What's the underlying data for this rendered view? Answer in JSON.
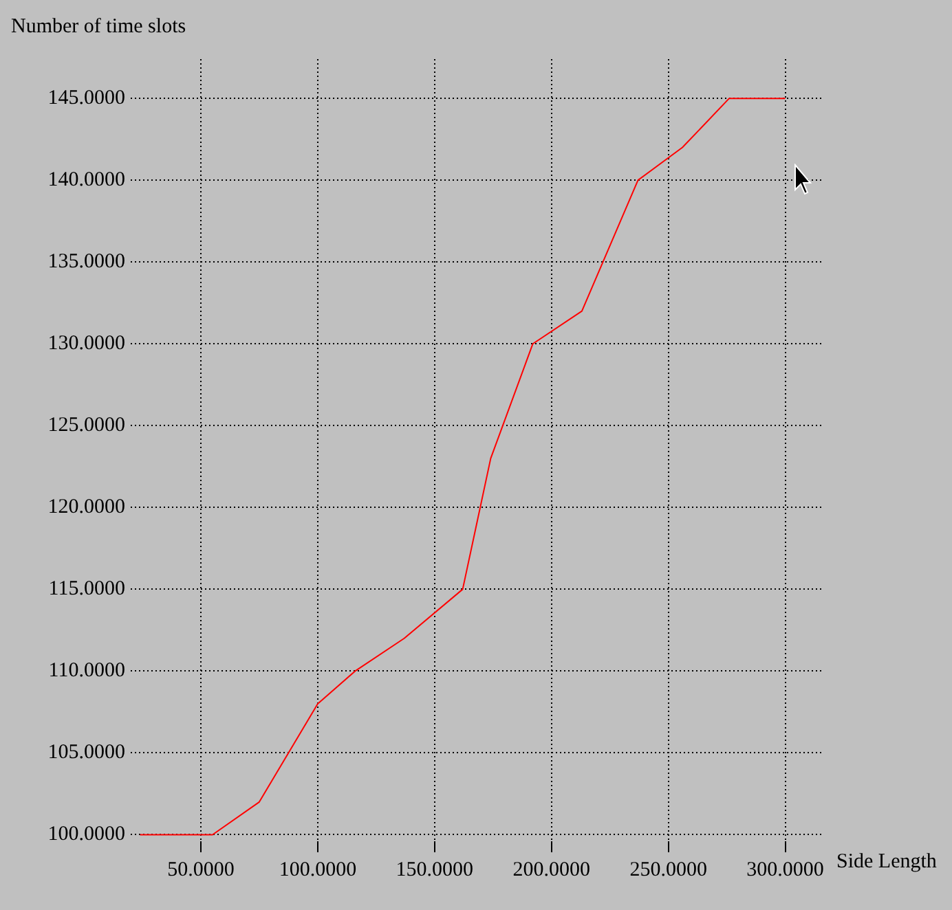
{
  "chart_data": {
    "type": "line",
    "ylabel": "Number of time slots",
    "xlabel": "Side Length",
    "x": [
      24,
      55,
      75,
      100,
      116,
      137,
      162,
      174,
      192,
      213,
      237,
      256,
      276,
      300
    ],
    "series": [
      {
        "color": "#ff0000",
        "values": [
          100,
          100,
          102,
          108,
          110,
          112,
          115,
          123,
          130,
          132,
          140,
          142,
          145,
          145
        ]
      }
    ],
    "xlim": [
      20,
      316
    ],
    "ylim": [
      99.6,
      147.4
    ],
    "xticks": [
      {
        "value": 50,
        "label": "50.0000"
      },
      {
        "value": 100,
        "label": "100.0000"
      },
      {
        "value": 150,
        "label": "150.0000"
      },
      {
        "value": 200,
        "label": "200.0000"
      },
      {
        "value": 250,
        "label": "250.0000"
      },
      {
        "value": 300,
        "label": "300.0000"
      }
    ],
    "yticks": [
      {
        "value": 100,
        "label": "100.0000"
      },
      {
        "value": 105,
        "label": "105.0000"
      },
      {
        "value": 110,
        "label": "110.0000"
      },
      {
        "value": 115,
        "label": "115.0000"
      },
      {
        "value": 120,
        "label": "120.0000"
      },
      {
        "value": 125,
        "label": "125.0000"
      },
      {
        "value": 130,
        "label": "130.0000"
      },
      {
        "value": 135,
        "label": "135.0000"
      },
      {
        "value": 140,
        "label": "140.0000"
      },
      {
        "value": 145,
        "label": "145.0000"
      }
    ],
    "grid": true,
    "legend": false,
    "marker": "none",
    "line_style": "solid"
  }
}
